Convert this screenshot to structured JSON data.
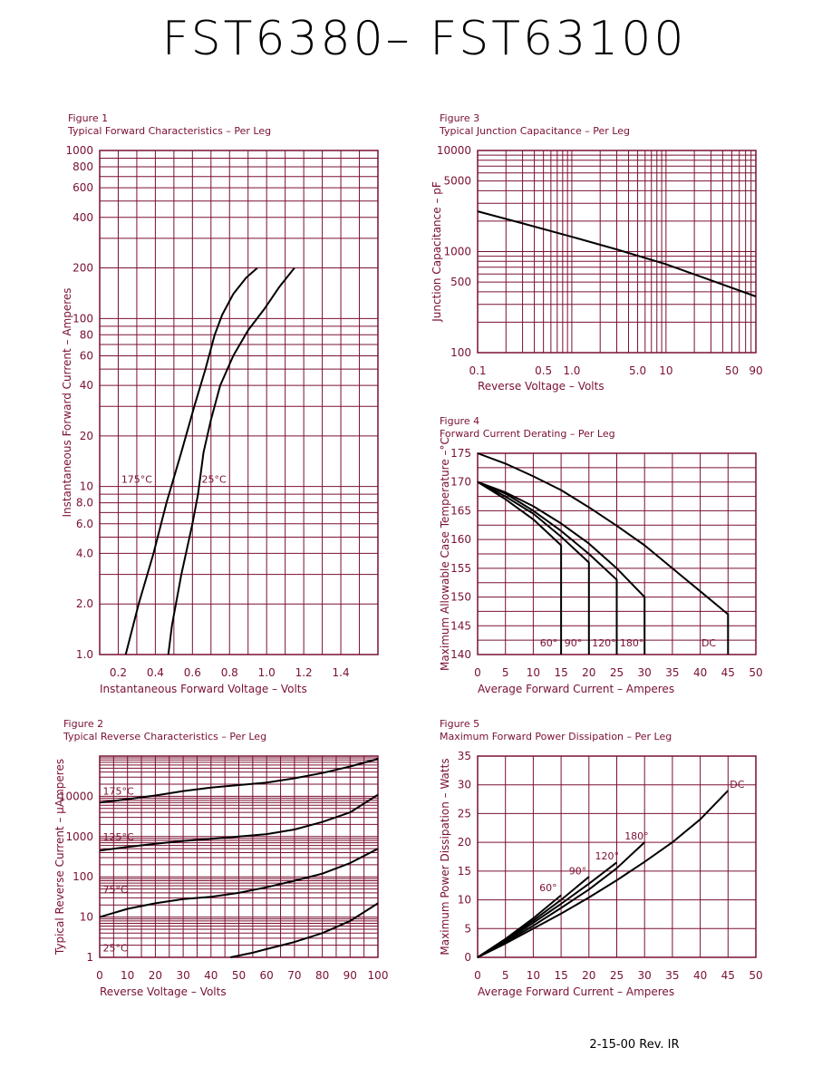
{
  "page": {
    "title": "FST6380–  FST63100",
    "footer": "2-15-00   Rev. IR"
  },
  "colors": {
    "grid": "#7a1030",
    "curve": "#000000",
    "text": "#7a1030",
    "title": "#000000"
  },
  "chart_data": [
    {
      "id": "fig1",
      "type": "line",
      "figure_label": "Figure 1",
      "title": "Typical Forward Characteristics – Per Leg",
      "xlabel": "Instantaneous Forward Voltage – Volts",
      "ylabel": "Instantaneous Forward Current – Amperes",
      "xlim": [
        0.1,
        1.6
      ],
      "ylim": [
        1,
        1000
      ],
      "yscale": "log",
      "xticks": [
        0.2,
        0.4,
        0.6,
        0.8,
        1.0,
        1.2,
        1.4
      ],
      "xtick_labels": [
        "0.2",
        "0.4",
        "0.6",
        "0.8",
        "1.0",
        "1.2",
        "1.4"
      ],
      "yticks": [
        1,
        2,
        4,
        6,
        8,
        10,
        20,
        40,
        60,
        80,
        100,
        200,
        400,
        600,
        800,
        1000
      ],
      "ytick_labels": [
        "1.0",
        "2.0",
        "4.0",
        "6.0",
        "8.0",
        "10",
        "20",
        "40",
        "60",
        "80",
        "100",
        "200",
        "400",
        "600",
        "800",
        "1000"
      ],
      "grid": true,
      "series": [
        {
          "name": "175°C",
          "x": [
            0.24,
            0.31,
            0.39,
            0.46,
            0.54,
            0.61,
            0.67,
            0.72,
            0.76,
            0.82,
            0.89,
            0.95
          ],
          "y": [
            1,
            2,
            4,
            8,
            16,
            30,
            50,
            80,
            105,
            140,
            175,
            200
          ]
        },
        {
          "name": "25°C",
          "x": [
            0.47,
            0.49,
            0.54,
            0.6,
            0.63,
            0.66,
            0.7,
            0.75,
            0.82,
            0.9,
            0.99,
            1.07,
            1.15
          ],
          "y": [
            1,
            1.5,
            3,
            6,
            9,
            16,
            25,
            40,
            60,
            85,
            115,
            155,
            200
          ]
        }
      ]
    },
    {
      "id": "fig2",
      "type": "line",
      "figure_label": "Figure 2",
      "title": "Typical Reverse Characteristics – Per Leg",
      "xlabel": "Reverse Voltage – Volts",
      "ylabel": "Typical Reverse Current – µAmperes",
      "xlim": [
        0,
        100
      ],
      "ylim": [
        1,
        100000
      ],
      "yscale": "log",
      "xticks": [
        0,
        10,
        20,
        30,
        40,
        50,
        60,
        70,
        80,
        90,
        100
      ],
      "xtick_labels": [
        "0",
        "10",
        "20",
        "30",
        "40",
        "50",
        "60",
        "70",
        "80",
        "90",
        "100"
      ],
      "yticks": [
        1,
        10,
        100,
        1000,
        10000
      ],
      "ytick_labels": [
        "1",
        "10",
        "100",
        "1000",
        "10000"
      ],
      "grid": true,
      "series": [
        {
          "name": "175°C",
          "x": [
            0,
            10,
            20,
            30,
            40,
            50,
            60,
            70,
            80,
            90,
            100
          ],
          "y": [
            7000,
            8500,
            10500,
            13500,
            16500,
            19000,
            22000,
            28000,
            38000,
            55000,
            85000
          ]
        },
        {
          "name": "125°C",
          "x": [
            0,
            10,
            20,
            30,
            40,
            50,
            60,
            70,
            80,
            90,
            100
          ],
          "y": [
            450,
            550,
            660,
            780,
            880,
            1000,
            1150,
            1500,
            2300,
            4000,
            11000
          ]
        },
        {
          "name": "75°C",
          "x": [
            0,
            10,
            20,
            30,
            40,
            50,
            60,
            70,
            80,
            90,
            100
          ],
          "y": [
            10,
            16,
            22,
            28,
            32,
            40,
            55,
            80,
            120,
            220,
            500
          ]
        },
        {
          "name": "25°C",
          "x": [
            47,
            55,
            60,
            70,
            80,
            90,
            100
          ],
          "y": [
            1,
            1.3,
            1.6,
            2.4,
            4,
            8,
            22
          ]
        }
      ]
    },
    {
      "id": "fig3",
      "type": "line",
      "figure_label": "Figure 3",
      "title": "Typical Junction Capacitance – Per Leg",
      "xlabel": "Reverse Voltage – Volts",
      "ylabel": "Junction Capacitance – pF",
      "xlim": [
        0.1,
        90
      ],
      "ylim": [
        100,
        10000
      ],
      "xscale": "log",
      "yscale": "log",
      "xticks": [
        0.1,
        0.5,
        1.0,
        5.0,
        10,
        50,
        90
      ],
      "xtick_labels": [
        "0.1",
        "0.5",
        "1.0",
        "5.0",
        "10",
        "50",
        "90"
      ],
      "yticks": [
        100,
        500,
        1000,
        5000,
        10000
      ],
      "ytick_labels": [
        "100",
        "500",
        "1000",
        "5000",
        "10000"
      ],
      "grid": true,
      "series": [
        {
          "x": [
            0.1,
            0.3,
            1,
            3,
            10,
            30,
            90
          ],
          "y": [
            2500,
            1900,
            1400,
            1050,
            750,
            520,
            360
          ]
        }
      ]
    },
    {
      "id": "fig4",
      "type": "line",
      "figure_label": "Figure 4",
      "title": "Forward Current Derating – Per Leg",
      "xlabel": "Average Forward Current – Amperes",
      "ylabel": "Maximum Allowable Case Temperature –°C",
      "xlim": [
        0,
        50
      ],
      "ylim": [
        140,
        175
      ],
      "xticks": [
        0,
        5,
        10,
        15,
        20,
        25,
        30,
        35,
        40,
        45,
        50
      ],
      "xtick_labels": [
        "0",
        "5",
        "10",
        "15",
        "20",
        "25",
        "30",
        "35",
        "40",
        "45",
        "50"
      ],
      "yticks": [
        140,
        145,
        150,
        155,
        160,
        165,
        170,
        175
      ],
      "ytick_labels": [
        "140",
        "145",
        "150",
        "155",
        "160",
        "165",
        "170",
        "175"
      ],
      "grid": true,
      "series": [
        {
          "name": "60°",
          "x": [
            0,
            5,
            10,
            15,
            15
          ],
          "y": [
            170,
            167,
            163.5,
            159,
            140
          ]
        },
        {
          "name": "90°",
          "x": [
            0,
            5,
            10,
            15,
            20,
            20
          ],
          "y": [
            170,
            167.5,
            164.5,
            160.5,
            156,
            140
          ]
        },
        {
          "name": "120°",
          "x": [
            0,
            5,
            10,
            15,
            20,
            25,
            25
          ],
          "y": [
            170,
            168,
            165,
            161.5,
            157.5,
            153,
            140
          ]
        },
        {
          "name": "180°",
          "x": [
            0,
            5,
            10,
            15,
            20,
            25,
            30,
            30
          ],
          "y": [
            170,
            168.2,
            165.8,
            162.8,
            159.3,
            155,
            150,
            140
          ]
        },
        {
          "name": "DC",
          "x": [
            0,
            5,
            10,
            15,
            20,
            25,
            30,
            35,
            40,
            45,
            45
          ],
          "y": [
            175,
            173.2,
            171,
            168.6,
            165.6,
            162.4,
            159,
            155,
            151,
            147,
            140
          ]
        }
      ]
    },
    {
      "id": "fig5",
      "type": "line",
      "figure_label": "Figure 5",
      "title": "Maximum Forward Power Dissipation – Per Leg",
      "xlabel": "Average Forward Current – Amperes",
      "ylabel": "Maximum Power Dissipation – Watts",
      "xlim": [
        0,
        50
      ],
      "ylim": [
        0,
        35
      ],
      "xticks": [
        0,
        5,
        10,
        15,
        20,
        25,
        30,
        35,
        40,
        45,
        50
      ],
      "xtick_labels": [
        "0",
        "5",
        "10",
        "15",
        "20",
        "25",
        "30",
        "35",
        "40",
        "45",
        "50"
      ],
      "yticks": [
        0,
        5,
        10,
        15,
        20,
        25,
        30,
        35
      ],
      "ytick_labels": [
        "0",
        "5",
        "10",
        "15",
        "20",
        "25",
        "30",
        "35"
      ],
      "grid": true,
      "series": [
        {
          "name": "60°",
          "x": [
            0,
            5,
            10,
            15
          ],
          "y": [
            0,
            3.2,
            6.8,
            10.8
          ]
        },
        {
          "name": "90°",
          "x": [
            0,
            5,
            10,
            15,
            20
          ],
          "y": [
            0,
            3,
            6.4,
            10,
            14
          ]
        },
        {
          "name": "120°",
          "x": [
            0,
            5,
            10,
            15,
            20,
            25
          ],
          "y": [
            0,
            2.8,
            6,
            9.3,
            12.8,
            16.5
          ]
        },
        {
          "name": "180°",
          "x": [
            0,
            5,
            10,
            15,
            20,
            25,
            30
          ],
          "y": [
            0,
            2.6,
            5.5,
            8.6,
            11.8,
            15.5,
            20
          ]
        },
        {
          "name": "DC",
          "x": [
            0,
            5,
            10,
            15,
            20,
            25,
            30,
            35,
            40,
            45
          ],
          "y": [
            0,
            2.4,
            5,
            7.6,
            10.4,
            13.4,
            16.6,
            20,
            24,
            29
          ]
        }
      ]
    }
  ]
}
